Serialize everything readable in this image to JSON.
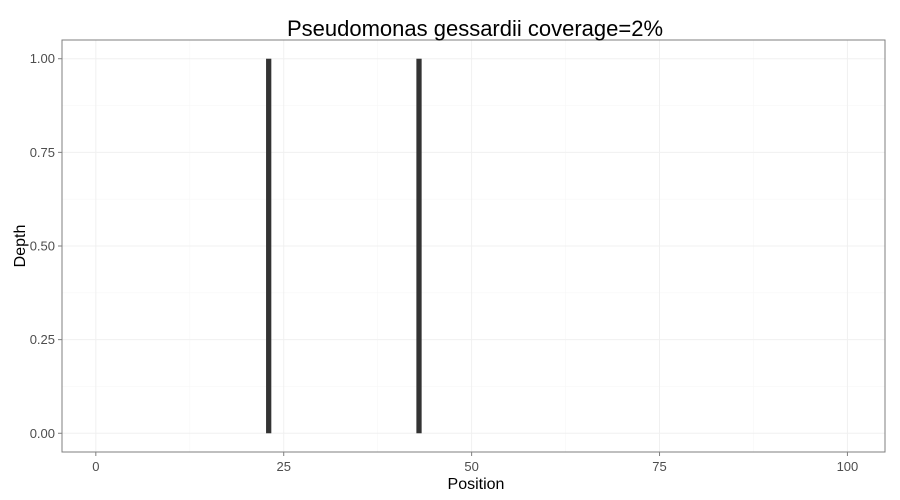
{
  "chart_data": {
    "type": "bar",
    "title": "Pseudomonas gessardii coverage=2%",
    "xlabel": "Position",
    "ylabel": "Depth",
    "xlim": [
      -4.5,
      105
    ],
    "ylim": [
      -0.05,
      1.05
    ],
    "x_ticks": [
      0,
      25,
      50,
      75,
      100
    ],
    "x_tick_labels": [
      "0",
      "25",
      "50",
      "75",
      "100"
    ],
    "y_ticks": [
      0,
      0.25,
      0.5,
      0.75,
      1
    ],
    "y_tick_labels": [
      "0.00",
      "0.25",
      "0.50",
      "0.75",
      "1.00"
    ],
    "grid": true,
    "points": [
      {
        "x": 23,
        "y": 1.0
      },
      {
        "x": 43,
        "y": 1.0
      }
    ],
    "colors": {
      "bar": "#333333",
      "panel_border": "#7f7f7f",
      "grid_major": "#f0f0f0",
      "grid_minor": "#f7f7f7"
    }
  }
}
